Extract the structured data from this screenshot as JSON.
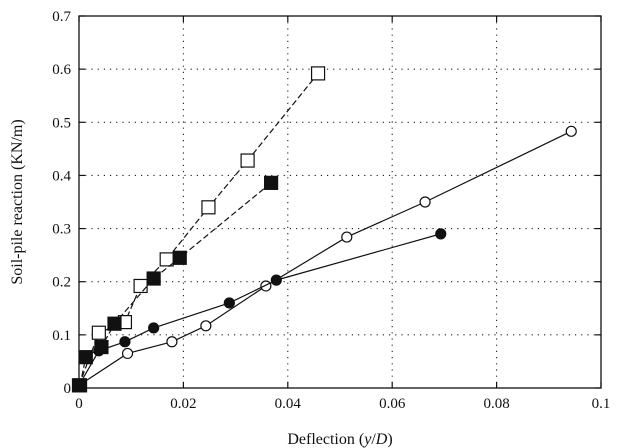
{
  "chart_data": {
    "type": "scatter",
    "title": "",
    "xlabel": "Deflection (y/D)",
    "ylabel": "Soil-pile reaction (KN/m)",
    "xlim": [
      0,
      0.1
    ],
    "ylim": [
      0,
      0.7
    ],
    "x_ticks": [
      0,
      0.02,
      0.04,
      0.06,
      0.08,
      0.1
    ],
    "y_ticks": [
      0,
      0.1,
      0.2,
      0.3,
      0.4,
      0.5,
      0.6,
      0.7
    ],
    "x_tick_labels": [
      "0",
      "0.02",
      "0.04",
      "0.06",
      "0.08",
      "0.1"
    ],
    "y_tick_labels": [
      "0",
      "0.1",
      "0.2",
      "0.3",
      "0.4",
      "0.5",
      "0.6",
      "0.7"
    ],
    "grid": true,
    "grid_style": "dotted",
    "legend": "none",
    "series": [
      {
        "marker": "open-square",
        "line": "dashed",
        "color": "#111111",
        "x": [
          0.0,
          0.0038,
          0.0088,
          0.0118,
          0.0168,
          0.0248,
          0.0323,
          0.0458
        ],
        "y": [
          0.005,
          0.104,
          0.124,
          0.192,
          0.242,
          0.34,
          0.428,
          0.592
        ]
      },
      {
        "marker": "filled-square",
        "line": "dashed",
        "color": "#111111",
        "x": [
          0.0002,
          0.0013,
          0.0043,
          0.0068,
          0.0143,
          0.0193,
          0.0368
        ],
        "y": [
          0.005,
          0.058,
          0.077,
          0.121,
          0.206,
          0.245,
          0.386
        ]
      },
      {
        "marker": "open-circle",
        "line": "solid",
        "color": "#111111",
        "x": [
          0.0,
          0.0093,
          0.0178,
          0.0243,
          0.0358,
          0.0513,
          0.0663,
          0.0943
        ],
        "y": [
          0.005,
          0.065,
          0.087,
          0.117,
          0.192,
          0.284,
          0.35,
          0.483
        ]
      },
      {
        "marker": "filled-circle",
        "line": "solid",
        "color": "#111111",
        "x": [
          0.0,
          0.0038,
          0.0088,
          0.0143,
          0.0288,
          0.0378,
          0.0693
        ],
        "y": [
          0.005,
          0.07,
          0.087,
          0.113,
          0.16,
          0.203,
          0.29
        ]
      }
    ]
  }
}
